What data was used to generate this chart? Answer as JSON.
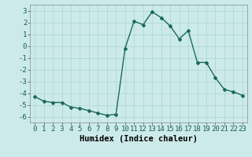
{
  "x": [
    0,
    1,
    2,
    3,
    4,
    5,
    6,
    7,
    8,
    9,
    10,
    11,
    12,
    13,
    14,
    15,
    16,
    17,
    18,
    19,
    20,
    21,
    22,
    23
  ],
  "y": [
    -4.3,
    -4.7,
    -4.8,
    -4.8,
    -5.2,
    -5.3,
    -5.5,
    -5.7,
    -5.9,
    -5.8,
    -0.2,
    2.1,
    1.8,
    2.9,
    2.4,
    1.7,
    0.6,
    1.3,
    -1.4,
    -1.4,
    -2.7,
    -3.7,
    -3.9,
    -4.2
  ],
  "xlabel": "Humidex (Indice chaleur)",
  "ylim": [
    -6.5,
    3.5
  ],
  "xlim": [
    -0.5,
    23.5
  ],
  "yticks": [
    -6,
    -5,
    -4,
    -3,
    -2,
    -1,
    0,
    1,
    2,
    3
  ],
  "xticks": [
    0,
    1,
    2,
    3,
    4,
    5,
    6,
    7,
    8,
    9,
    10,
    11,
    12,
    13,
    14,
    15,
    16,
    17,
    18,
    19,
    20,
    21,
    22,
    23
  ],
  "line_color": "#1a6b5a",
  "marker": "D",
  "marker_size": 2.0,
  "bg_color": "#cdeaea",
  "grid_color": "#b0d8d8",
  "tick_label_fontsize": 6.5,
  "xlabel_fontsize": 7.5,
  "line_width": 1.0
}
